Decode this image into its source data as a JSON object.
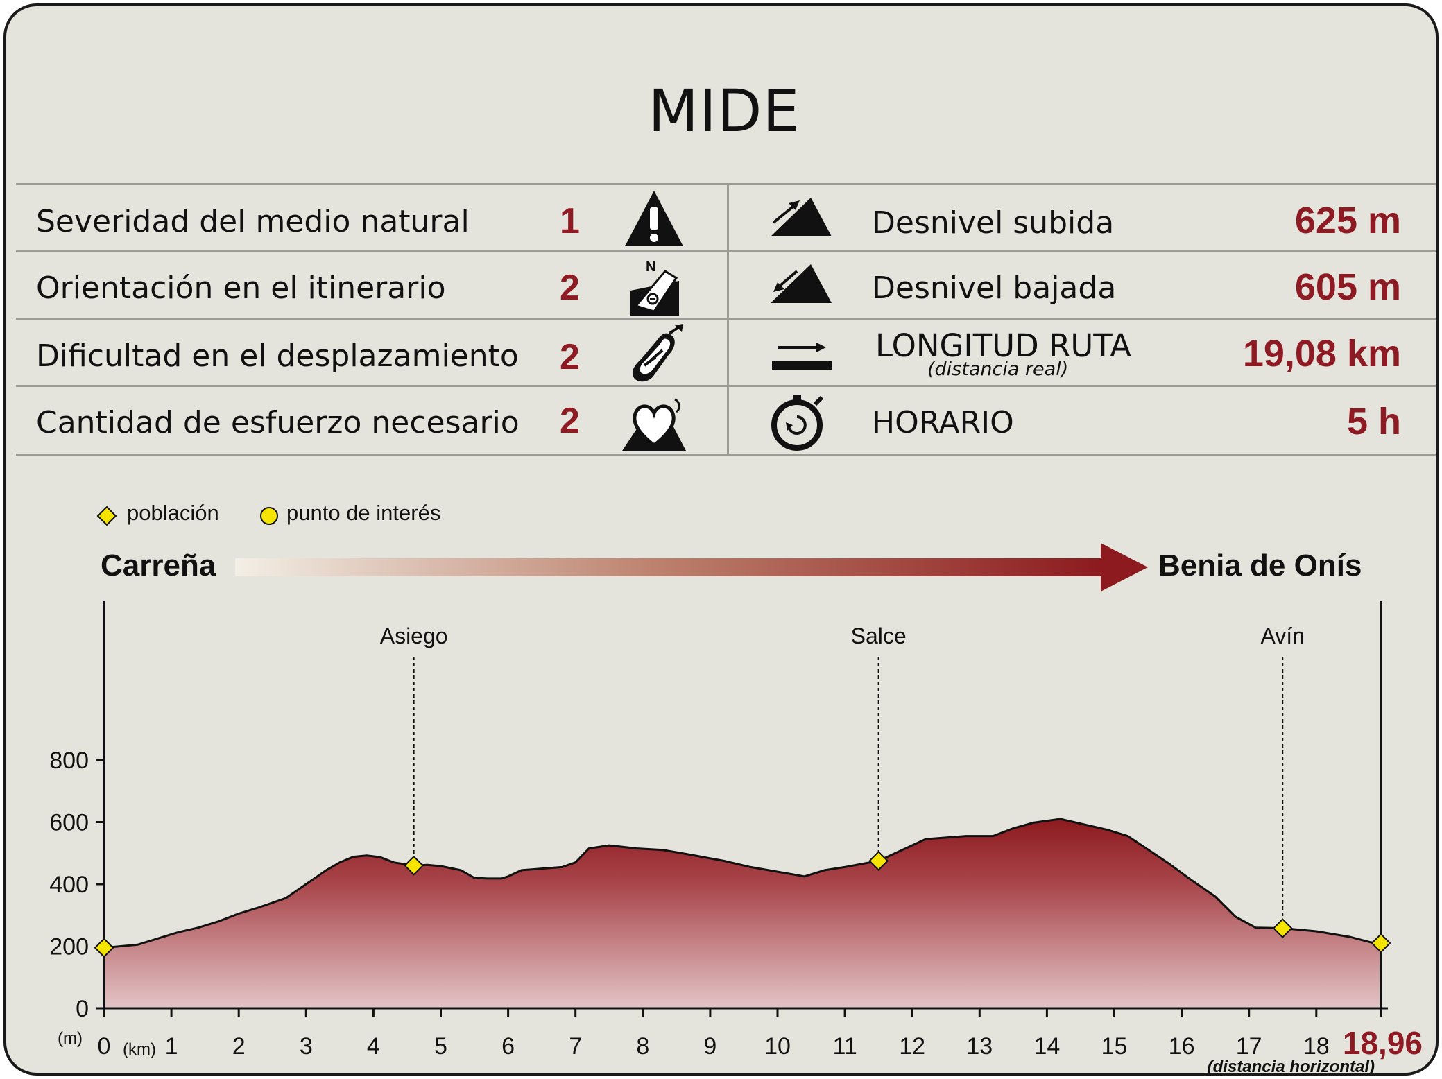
{
  "mide": {
    "title": "MIDE",
    "left_rows": [
      {
        "label": "Severidad del medio natural",
        "value": "1",
        "icon": "warning-triangle-icon"
      },
      {
        "label": "Orientación en el itinerario",
        "value": "2",
        "icon": "compass-orientation-icon"
      },
      {
        "label": "Dificultad en el desplazamiento",
        "value": "2",
        "icon": "footprint-icon"
      },
      {
        "label": "Cantidad de esfuerzo necesario",
        "value": "2",
        "icon": "heart-effort-icon"
      }
    ],
    "right_rows": [
      {
        "label": "Desnivel subida",
        "value": "625 m",
        "icon": "ascent-slope-icon"
      },
      {
        "label": "Desnivel bajada",
        "value": "605 m",
        "icon": "descent-slope-icon"
      },
      {
        "label": "LONGITUD RUTA",
        "sublabel": "(distancia real)",
        "value": "19,08 km",
        "icon": "distance-arrow-icon"
      },
      {
        "label": "HORARIO",
        "value": "5 h",
        "icon": "stopwatch-icon"
      }
    ]
  },
  "legend": {
    "poblacion": "población",
    "punto_interes": "punto de interés"
  },
  "route": {
    "start": "Carreña",
    "end": "Benia de Onís"
  },
  "colors": {
    "accent": "#8e1a24",
    "marker_fill": "#f5e400",
    "profile_top": "#8c1a1e",
    "profile_bottom": "#e3c4c6"
  },
  "chart_data": {
    "type": "area",
    "xlabel": "(km)",
    "ylabel": "(m)",
    "xlim": [
      0,
      18.96
    ],
    "ylim": [
      0,
      800
    ],
    "xticks": [
      "0",
      "1",
      "2",
      "3",
      "4",
      "5",
      "6",
      "7",
      "8",
      "9",
      "10",
      "11",
      "12",
      "13",
      "14",
      "15",
      "16",
      "17",
      "18"
    ],
    "yticks": [
      "0",
      "200",
      "400",
      "600",
      "800"
    ],
    "end_label": "18,96",
    "end_sublabel": "(distancia horizontal)",
    "x": [
      0,
      0.5,
      0.8,
      1.1,
      1.4,
      1.7,
      2,
      2.3,
      2.7,
      3,
      3.3,
      3.5,
      3.7,
      3.9,
      4.1,
      4.3,
      4.6,
      4.8,
      5,
      5.3,
      5.5,
      5.7,
      5.9,
      6,
      6.2,
      6.5,
      6.8,
      7,
      7.2,
      7.5,
      7.9,
      8.3,
      8.7,
      9.2,
      9.6,
      10,
      10.4,
      10.7,
      11,
      11.5,
      11.8,
      12.2,
      12.8,
      13.2,
      13.5,
      13.8,
      14.2,
      14.5,
      14.9,
      15.2,
      15.8,
      16.1,
      16.5,
      16.8,
      17.1,
      17.5,
      18,
      18.5,
      18.8,
      18.96
    ],
    "y": [
      195,
      205,
      225,
      245,
      260,
      280,
      305,
      325,
      355,
      400,
      445,
      470,
      488,
      492,
      487,
      470,
      460,
      462,
      458,
      445,
      420,
      418,
      418,
      425,
      445,
      450,
      455,
      470,
      515,
      525,
      515,
      510,
      495,
      475,
      455,
      440,
      425,
      445,
      455,
      475,
      505,
      545,
      555,
      555,
      580,
      598,
      610,
      595,
      575,
      555,
      468,
      420,
      360,
      295,
      260,
      258,
      248,
      230,
      213,
      210
    ],
    "annotations": [
      {
        "x": 4.6,
        "y": 460,
        "label": "Asiego",
        "kind": "poblacion"
      },
      {
        "x": 11.5,
        "y": 475,
        "label": "Salce",
        "kind": "poblacion"
      },
      {
        "x": 17.5,
        "y": 258,
        "label": "Avín",
        "kind": "poblacion"
      },
      {
        "x": 0,
        "y": 195,
        "label": "",
        "kind": "poblacion"
      },
      {
        "x": 18.96,
        "y": 210,
        "label": "",
        "kind": "poblacion"
      }
    ]
  }
}
